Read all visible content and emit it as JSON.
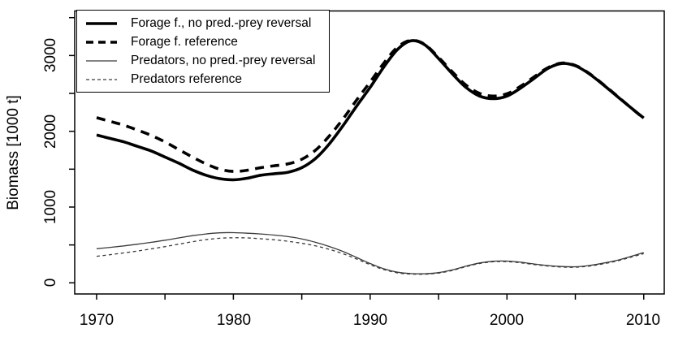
{
  "chart_data": {
    "type": "line",
    "title": "",
    "xlabel": "",
    "ylabel": "Biomass [1000 t]",
    "xlim": [
      1968.4,
      2011.5
    ],
    "ylim": [
      -147,
      3588
    ],
    "grid": false,
    "legend_position": "top-left",
    "x_ticks": [
      1970,
      1975,
      1980,
      1985,
      1990,
      1995,
      2000,
      2005,
      2010
    ],
    "x_labeled_ticks": [
      1970,
      1980,
      1990,
      2000,
      2010
    ],
    "x_tick_labels": [
      "1970",
      "1980",
      "1990",
      "2000",
      "2010"
    ],
    "y_ticks": [
      0,
      500,
      1000,
      1500,
      2000,
      2500,
      3000,
      3500
    ],
    "y_labeled_ticks": [
      0,
      1000,
      2000,
      3000
    ],
    "y_tick_labels": [
      "0",
      "1000",
      "2000",
      "3000"
    ],
    "colors": {
      "thick": "#000000",
      "thin": "#3a3a3a",
      "axis": "#000000"
    },
    "x": [
      1970,
      1971,
      1972,
      1973,
      1974,
      1975,
      1976,
      1977,
      1978,
      1979,
      1980,
      1981,
      1982,
      1983,
      1984,
      1985,
      1986,
      1987,
      1988,
      1989,
      1990,
      1991,
      1992,
      1993,
      1994,
      1995,
      1996,
      1997,
      1998,
      1999,
      2000,
      2001,
      2002,
      2003,
      2004,
      2005,
      2006,
      2007,
      2008,
      2009,
      2010
    ],
    "series": [
      {
        "name": "Forage f., no pred.-prey reversal",
        "style": "solid",
        "weight": "thick",
        "values": [
          1950,
          1905,
          1860,
          1800,
          1740,
          1660,
          1580,
          1490,
          1420,
          1375,
          1360,
          1380,
          1420,
          1440,
          1460,
          1520,
          1640,
          1830,
          2070,
          2330,
          2580,
          2850,
          3080,
          3195,
          3140,
          2960,
          2760,
          2580,
          2465,
          2430,
          2465,
          2570,
          2700,
          2830,
          2895,
          2865,
          2760,
          2620,
          2470,
          2320,
          2175
        ]
      },
      {
        "name": "Forage f. reference",
        "style": "dashed",
        "weight": "thick",
        "values": [
          2180,
          2130,
          2080,
          2015,
          1945,
          1860,
          1760,
          1660,
          1570,
          1500,
          1470,
          1485,
          1520,
          1545,
          1570,
          1630,
          1750,
          1935,
          2160,
          2410,
          2650,
          2900,
          3110,
          3200,
          3145,
          2975,
          2785,
          2610,
          2500,
          2465,
          2495,
          2595,
          2720,
          2840,
          2900,
          2870,
          2765,
          2625,
          2475,
          2320,
          2170
        ]
      },
      {
        "name": "Predators, no pred.-prey reversal",
        "style": "solid",
        "weight": "thin",
        "values": [
          450,
          468,
          488,
          510,
          535,
          562,
          592,
          622,
          645,
          660,
          662,
          655,
          645,
          630,
          610,
          580,
          535,
          480,
          415,
          335,
          255,
          185,
          140,
          122,
          120,
          135,
          170,
          220,
          262,
          285,
          287,
          272,
          248,
          228,
          215,
          212,
          228,
          258,
          295,
          345,
          400
        ]
      },
      {
        "name": "Predators reference",
        "style": "dashed",
        "weight": "thin",
        "values": [
          350,
          372,
          395,
          420,
          448,
          478,
          510,
          542,
          570,
          588,
          595,
          592,
          582,
          568,
          548,
          522,
          488,
          442,
          385,
          315,
          240,
          175,
          132,
          116,
          114,
          128,
          163,
          213,
          255,
          278,
          280,
          265,
          241,
          222,
          208,
          206,
          221,
          250,
          286,
          335,
          385
        ]
      }
    ]
  }
}
